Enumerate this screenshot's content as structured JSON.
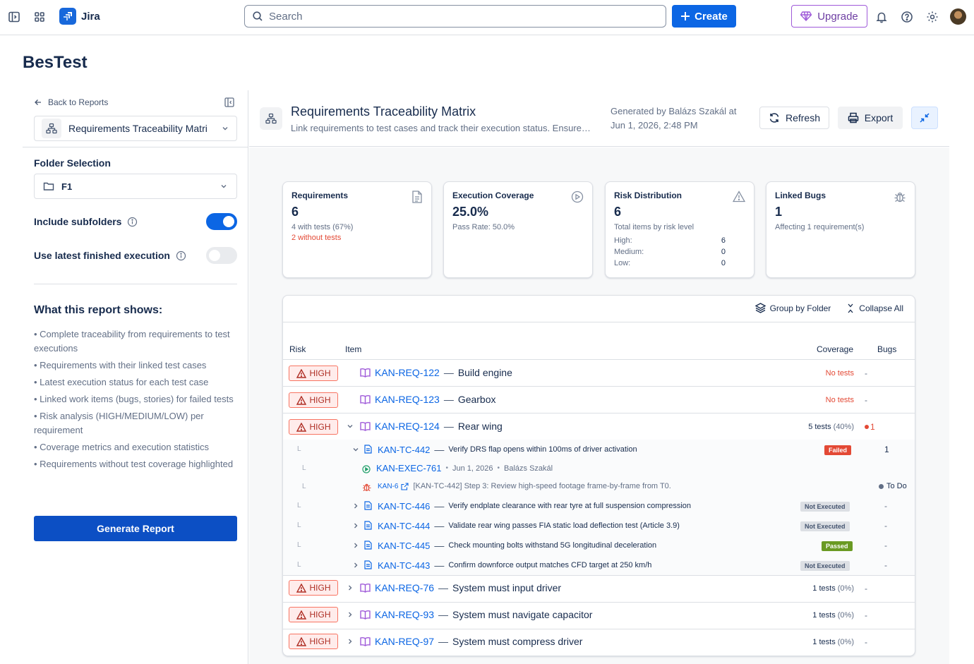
{
  "topbar": {
    "app_name": "Jira",
    "search_placeholder": "Search",
    "create_label": "Create",
    "upgrade_label": "Upgrade"
  },
  "page": {
    "title": "BesTest"
  },
  "sidebar": {
    "back_label": "Back to Reports",
    "report_select": "Requirements Traceability Matri",
    "folder_label": "Folder Selection",
    "folder_value": "F1",
    "include_subfolders": {
      "label": "Include subfolders",
      "on": true
    },
    "latest_execution": {
      "label": "Use latest finished execution",
      "on": false
    },
    "what_title": "What this report shows:",
    "what_items": [
      "• Complete traceability from requirements to test executions",
      "• Requirements with their linked test cases",
      "• Latest execution status for each test case",
      "• Linked work items (bugs, stories) for failed tests",
      "• Risk analysis (HIGH/MEDIUM/LOW) per requirement",
      "• Coverage metrics and execution statistics",
      "• Requirements without test coverage highlighted"
    ],
    "generate_label": "Generate Report"
  },
  "header": {
    "title": "Requirements Traceability Matrix",
    "subtitle": "Link requirements to test cases and track their execution status. Ensure…",
    "generated": "Generated by Balázs Szakál at Jun 1, 2026, 2:48 PM",
    "refresh_label": "Refresh",
    "export_label": "Export"
  },
  "cards": {
    "requirements": {
      "title": "Requirements",
      "value": "6",
      "sub": "4 with tests (67%)",
      "red": "2 without tests"
    },
    "coverage": {
      "title": "Execution Coverage",
      "value": "25.0%",
      "sub": "Pass Rate: 50.0%"
    },
    "risk": {
      "title": "Risk Distribution",
      "value": "6",
      "sub": "Total items by risk level",
      "high_label": "High:",
      "high": "6",
      "medium_label": "Medium:",
      "medium": "0",
      "low_label": "Low:",
      "low": "0"
    },
    "bugs": {
      "title": "Linked Bugs",
      "value": "1",
      "sub": "Affecting 1 requirement(s)"
    }
  },
  "table": {
    "group_label": "Group by Folder",
    "collapse_label": "Collapse All",
    "columns": {
      "risk": "Risk",
      "item": "Item",
      "coverage": "Coverage",
      "bugs": "Bugs"
    },
    "risk_label": "HIGH",
    "rows": [
      {
        "key": "KAN-REQ-122",
        "summary": "Build engine",
        "coverage": "No tests",
        "bugs": "-"
      },
      {
        "key": "KAN-REQ-123",
        "summary": "Gearbox",
        "coverage": "No tests",
        "bugs": "-"
      },
      {
        "key": "KAN-REQ-124",
        "summary": "Rear wing",
        "coverage": "5 tests",
        "coverage_pct": "(40%)",
        "bugs": "1"
      },
      {
        "key": "KAN-REQ-76",
        "summary": "System must input driver",
        "coverage": "1 tests",
        "coverage_pct": "(0%)",
        "bugs": "-"
      },
      {
        "key": "KAN-REQ-93",
        "summary": "System must navigate capacitor",
        "coverage": "1 tests",
        "coverage_pct": "(0%)",
        "bugs": "-"
      },
      {
        "key": "KAN-REQ-97",
        "summary": "System must compress driver",
        "coverage": "1 tests",
        "coverage_pct": "(0%)",
        "bugs": "-"
      }
    ],
    "tests": [
      {
        "key": "KAN-TC-442",
        "summary": "Verify DRS flap opens within 100ms of driver activation",
        "status": "Failed",
        "bugs": "1"
      },
      {
        "key": "KAN-TC-446",
        "summary": "Verify endplate clearance with rear tyre at full suspension compression",
        "status": "Not Executed",
        "bugs": "-"
      },
      {
        "key": "KAN-TC-444",
        "summary": "Validate rear wing passes FIA static load deflection test (Article 3.9)",
        "status": "Not Executed",
        "bugs": "-"
      },
      {
        "key": "KAN-TC-445",
        "summary": "Check mounting bolts withstand 5G longitudinal deceleration",
        "status": "Passed",
        "bugs": "-"
      },
      {
        "key": "KAN-TC-443",
        "summary": "Confirm downforce output matches CFD target at 250 km/h",
        "status": "Not Executed",
        "bugs": "-"
      }
    ],
    "execution": {
      "key": "KAN-EXEC-761",
      "date": "Jun 1, 2026",
      "user": "Balázs Szakál"
    },
    "bug": {
      "key": "KAN-6",
      "summary": "[KAN-TC-442] Step 3: Review high-speed footage frame-by-frame from T0.",
      "status": "To Do"
    },
    "tree_mark": "L",
    "separator": "—",
    "dot": "•"
  },
  "colors": {
    "accent": "#0c66e4",
    "high_bg": "#ffeceb",
    "failed": "#e34935",
    "passed": "#6a9a23",
    "purple": "#9f5ad9"
  }
}
